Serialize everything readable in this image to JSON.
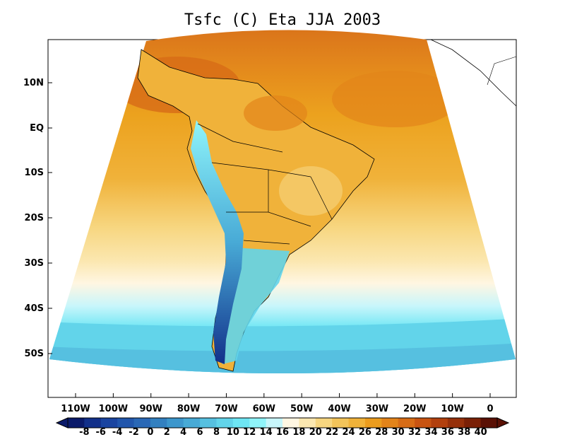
{
  "map": {
    "title": "Tsfc (C) Eta JJA 2003",
    "lat_labels": [
      "10N",
      "EQ",
      "10S",
      "20S",
      "30S",
      "40S",
      "50S"
    ],
    "lon_labels": [
      "110W",
      "100W",
      "90W",
      "80W",
      "70W",
      "60W",
      "50W",
      "40W",
      "30W",
      "20W",
      "10W",
      "0"
    ],
    "colorbar": {
      "labels": [
        "-8",
        "-6",
        "-4",
        "-2",
        "0",
        "2",
        "4",
        "6",
        "8",
        "10",
        "12",
        "14",
        "16",
        "18",
        "20",
        "22",
        "24",
        "26",
        "28",
        "30",
        "32",
        "34",
        "36",
        "38",
        "40"
      ],
      "colors": [
        "#0a1a6a",
        "#12308a",
        "#1a44a0",
        "#2156ac",
        "#2a68b6",
        "#3280c0",
        "#3c96cc",
        "#48aad6",
        "#56c0e0",
        "#62d4ea",
        "#6ee6f4",
        "#8ff4fa",
        "#c8f6fb",
        "#fff6e2",
        "#fbe7b0",
        "#f7d680",
        "#f3c45a",
        "#f0b23a",
        "#eb9c1e",
        "#e3841a",
        "#d76c16",
        "#c85412",
        "#b2400e",
        "#96300a",
        "#7a2006",
        "#5a1004"
      ]
    },
    "colors": {
      "ocean_warm": "#eca21e",
      "ocean_mid": "#f4c04a",
      "ocean_cool": "#56d6ea",
      "ocean_cold": "#6ee6f4",
      "land_warm": "#f1b43c",
      "andes_cold": "#1a44a0",
      "boundary": "#000000"
    }
  }
}
